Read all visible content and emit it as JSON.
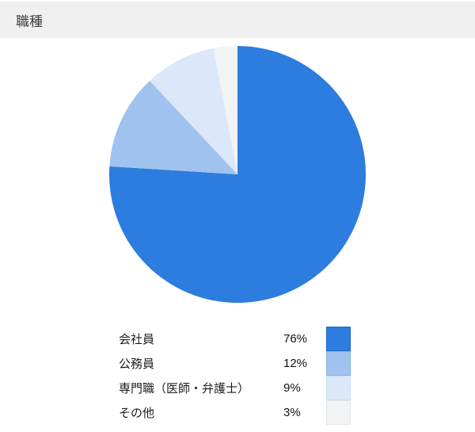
{
  "header": {
    "title": "職種",
    "background": "#f0f0f1",
    "text_color": "#3d3d3d"
  },
  "chart_data": {
    "type": "pie",
    "title": "職種",
    "categories": [
      "会社員",
      "公務員",
      "専門職（医師・弁護士）",
      "その他"
    ],
    "values": [
      76,
      12,
      9,
      3
    ],
    "unit": "%",
    "start_angle_deg": 0,
    "direction": "clockwise",
    "legend_position": "bottom",
    "colors": [
      "#2d7cdf",
      "#9fc2ef",
      "#dbe8f9",
      "#f2f3f4"
    ],
    "slices": [
      {
        "label": "会社員",
        "value": 76,
        "value_label": "76%",
        "color": "#2d7cdf",
        "border_color": "#1f6ace"
      },
      {
        "label": "公務員",
        "value": 12,
        "value_label": "12%",
        "color": "#9fc2ef",
        "border_color": "#8ab3e2"
      },
      {
        "label": "専門職（医師・弁護士）",
        "value": 9,
        "value_label": "9%",
        "color": "#dbe8f9",
        "border_color": "#cdddf0"
      },
      {
        "label": "その他",
        "value": 3,
        "value_label": "3%",
        "color": "#f2f3f4",
        "border_color": "#e7e8ea"
      }
    ]
  }
}
